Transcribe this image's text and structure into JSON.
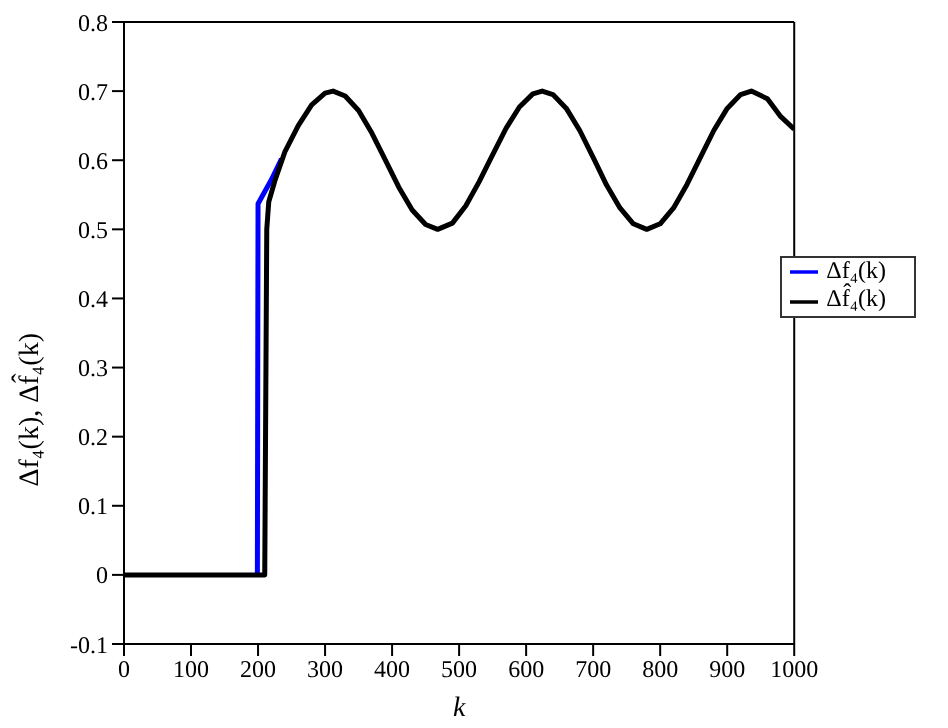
{
  "chart_data": {
    "type": "line",
    "xlabel": "k",
    "ylabel": "Δf₄(k), Δf̂₄(k)",
    "xlim": [
      0,
      1000
    ],
    "ylim": [
      -0.1,
      0.8
    ],
    "xticks": [
      0,
      100,
      200,
      300,
      400,
      500,
      600,
      700,
      800,
      900,
      1000
    ],
    "yticks": [
      -0.1,
      0,
      0.1,
      0.2,
      0.3,
      0.4,
      0.5,
      0.6,
      0.7,
      0.8
    ],
    "grid": false,
    "legend": "right",
    "marker": "none",
    "line_style": "solid",
    "series": [
      {
        "name": "Δf₄(k)",
        "color": "#0000ff",
        "x": [
          199,
          200,
          220,
          235
        ],
        "values": [
          0,
          0.537,
          0.572,
          0.602
        ]
      },
      {
        "name": "Δf̂₄(k)",
        "color": "#000000",
        "x": [
          0,
          210,
          213,
          216,
          225,
          240,
          260,
          280,
          300,
          312,
          330,
          350,
          370,
          390,
          410,
          430,
          450,
          468,
          490,
          510,
          530,
          546,
          570,
          590,
          610,
          624,
          640,
          660,
          680,
          702,
          720,
          740,
          760,
          780,
          800,
          820,
          840,
          858,
          880,
          900,
          920,
          936,
          960,
          980,
          1000
        ],
        "values": [
          0,
          0,
          0.5,
          0.54,
          0.57,
          0.612,
          0.65,
          0.68,
          0.697,
          0.7,
          0.693,
          0.672,
          0.639,
          0.6,
          0.561,
          0.528,
          0.507,
          0.5,
          0.509,
          0.534,
          0.569,
          0.6,
          0.646,
          0.677,
          0.696,
          0.7,
          0.695,
          0.675,
          0.643,
          0.6,
          0.564,
          0.531,
          0.508,
          0.5,
          0.508,
          0.531,
          0.565,
          0.6,
          0.643,
          0.675,
          0.695,
          0.7,
          0.689,
          0.663,
          0.645
        ]
      }
    ]
  }
}
